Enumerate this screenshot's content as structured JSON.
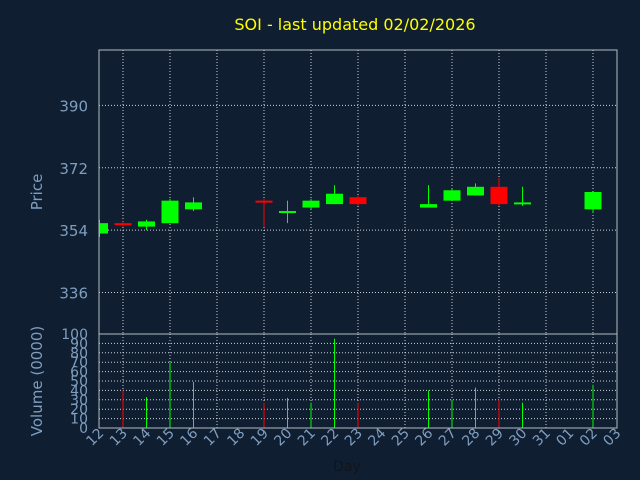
{
  "chart_data": {
    "type": "candlestick",
    "title": "SOI - last updated 02/02/2026",
    "xlabel": "Day",
    "price_panel": {
      "ylabel": "Price",
      "yticks": [
        336,
        354,
        372,
        390
      ],
      "ylim": [
        324,
        406
      ],
      "grid": true
    },
    "volume_panel": {
      "ylabel": "Volume (0000)",
      "yticks": [
        0,
        10,
        20,
        30,
        40,
        50,
        60,
        70,
        80,
        90,
        100
      ],
      "ylim": [
        0,
        100
      ],
      "grid": true
    },
    "categories": [
      "12",
      "13",
      "14",
      "15",
      "16",
      "17",
      "18",
      "19",
      "20",
      "21",
      "22",
      "23",
      "24",
      "25",
      "26",
      "27",
      "28",
      "29",
      "30",
      "31",
      "01",
      "02",
      "03"
    ],
    "candles": [
      {
        "x": "12",
        "open": 353,
        "high": 357,
        "low": 352,
        "close": 356,
        "volume": 0
      },
      {
        "x": "13",
        "open": 356,
        "high": 356.5,
        "low": 355,
        "close": 355.5,
        "volume": 40
      },
      {
        "x": "14",
        "open": 355,
        "high": 357,
        "low": 354,
        "close": 356.5,
        "volume": 33
      },
      {
        "x": "15",
        "open": 356,
        "high": 363,
        "low": 356,
        "close": 362.5,
        "volume": 70
      },
      {
        "x": "16",
        "open": 360,
        "high": 363.5,
        "low": 359.5,
        "close": 362,
        "volume": 49
      },
      {
        "x": "19",
        "open": 362.5,
        "high": 363,
        "low": 355,
        "close": 362,
        "volume": 27
      },
      {
        "x": "20",
        "open": 359,
        "high": 362.5,
        "low": 356,
        "close": 359.5,
        "volume": 32
      },
      {
        "x": "21",
        "open": 360.5,
        "high": 363,
        "low": 360,
        "close": 362.5,
        "volume": 27
      },
      {
        "x": "22",
        "open": 361.5,
        "high": 367,
        "low": 361.5,
        "close": 364.5,
        "volume": 95
      },
      {
        "x": "23",
        "open": 363.5,
        "high": 364,
        "low": 361,
        "close": 361.5,
        "volume": 27
      },
      {
        "x": "26",
        "open": 360.5,
        "high": 367,
        "low": 360.5,
        "close": 361.5,
        "volume": 40
      },
      {
        "x": "27",
        "open": 362.5,
        "high": 366,
        "low": 362.5,
        "close": 365.5,
        "volume": 30
      },
      {
        "x": "28",
        "open": 364,
        "high": 367.5,
        "low": 364,
        "close": 366.5,
        "volume": 43
      },
      {
        "x": "29",
        "open": 366.5,
        "high": 369,
        "low": 361,
        "close": 361.5,
        "volume": 30
      },
      {
        "x": "30",
        "open": 361.5,
        "high": 366.5,
        "low": 361,
        "close": 362,
        "volume": 27
      },
      {
        "x": "02",
        "open": 360,
        "high": 365,
        "low": 359,
        "close": 365,
        "volume": 46
      }
    ],
    "colors": {
      "up": "#00ff00",
      "down": "#ff0000",
      "title": "#ffff00",
      "background": "#0f1e30",
      "axis_text": "#7f9ec0",
      "grid": "#ffffff"
    }
  }
}
